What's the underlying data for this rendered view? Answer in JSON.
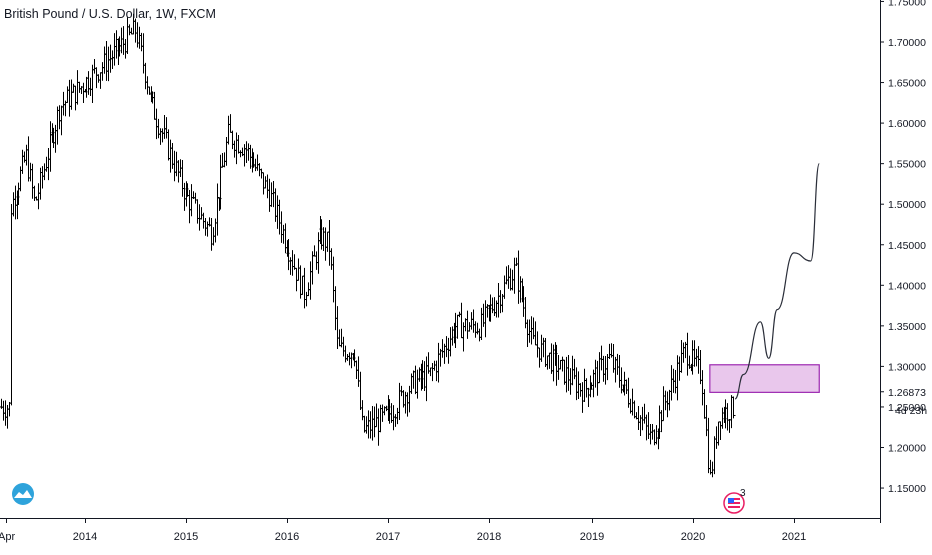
{
  "header": {
    "title": "British Pound / U.S. Dollar, 1W, FXCM"
  },
  "colors": {
    "bar": "#000000",
    "zone_fill": "#e9c7ec",
    "zone_border": "#9c27b0",
    "axis_line": "#131722",
    "logo": "#2ea3db",
    "event_icon": "#e91e63"
  },
  "price_axis": {
    "min": 1.1,
    "max": 1.75,
    "ticks": [
      "1.70000",
      "1.65000",
      "1.60000",
      "1.55000",
      "1.50000",
      "1.45000",
      "1.40000",
      "1.35000",
      "1.30000",
      "1.25000",
      "1.20000",
      "1.15000"
    ],
    "top_tick": "1.75000",
    "current_price": "1.26873",
    "countdown": "4d 23h"
  },
  "time_axis": {
    "left_stub": "Apr",
    "year_ticks": [
      "2014",
      "2015",
      "2016",
      "2017",
      "2018",
      "2019",
      "2020",
      "2021"
    ]
  },
  "events": {
    "badge_count": "3",
    "icon": "us-flag-event-icon"
  },
  "logo_icon": "tradingview-cloud-icon",
  "chart_data": {
    "type": "ohlc",
    "title": "British Pound / U.S. Dollar, 1W, FXCM",
    "timeframe": "1W",
    "xlabel": "",
    "ylabel": "",
    "ylim": [
      1.1,
      1.75
    ],
    "xlim": [
      "2013-04",
      "2021-12"
    ],
    "grid": false,
    "series": [
      {
        "key_points": [
          {
            "t": "2013-04",
            "p": 1.49
          },
          {
            "t": "2013-06",
            "p": 1.56
          },
          {
            "t": "2013-07",
            "p": 1.5
          },
          {
            "t": "2013-10",
            "p": 1.62
          },
          {
            "t": "2014-01",
            "p": 1.65
          },
          {
            "t": "2014-03",
            "p": 1.67
          },
          {
            "t": "2014-07",
            "p": 1.715
          },
          {
            "t": "2014-09",
            "p": 1.62
          },
          {
            "t": "2015-01",
            "p": 1.51
          },
          {
            "t": "2015-04",
            "p": 1.465
          },
          {
            "t": "2015-06",
            "p": 1.585
          },
          {
            "t": "2015-08",
            "p": 1.57
          },
          {
            "t": "2015-11",
            "p": 1.51
          },
          {
            "t": "2016-03",
            "p": 1.39
          },
          {
            "t": "2016-05",
            "p": 1.46
          },
          {
            "t": "2016-06",
            "p": 1.45
          },
          {
            "t": "2016-07",
            "p": 1.32
          },
          {
            "t": "2016-09",
            "p": 1.32
          },
          {
            "t": "2016-10",
            "p": 1.22
          },
          {
            "t": "2017-01",
            "p": 1.24
          },
          {
            "t": "2017-04",
            "p": 1.28
          },
          {
            "t": "2017-06",
            "p": 1.29
          },
          {
            "t": "2017-09",
            "p": 1.35
          },
          {
            "t": "2017-12",
            "p": 1.35
          },
          {
            "t": "2018-04",
            "p": 1.42
          },
          {
            "t": "2018-06",
            "p": 1.33
          },
          {
            "t": "2018-09",
            "p": 1.3
          },
          {
            "t": "2018-12",
            "p": 1.27
          },
          {
            "t": "2019-03",
            "p": 1.31
          },
          {
            "t": "2019-08",
            "p": 1.21
          },
          {
            "t": "2019-12",
            "p": 1.32
          },
          {
            "t": "2020-02",
            "p": 1.29
          },
          {
            "t": "2020-03",
            "p": 1.16
          },
          {
            "t": "2020-04",
            "p": 1.24
          },
          {
            "t": "2020-06",
            "p": 1.25
          }
        ]
      }
    ],
    "annotations": [
      {
        "type": "rectangle-zone",
        "x_start": "2020-03",
        "x_end": "2021-04",
        "y_range": [
          1.268,
          1.302
        ]
      },
      {
        "type": "projection-path",
        "points": [
          {
            "t": "2020-06",
            "p": 1.26
          },
          {
            "t": "2020-07",
            "p": 1.29
          },
          {
            "t": "2020-09",
            "p": 1.355
          },
          {
            "t": "2020-10",
            "p": 1.31
          },
          {
            "t": "2020-11",
            "p": 1.37
          },
          {
            "t": "2021-01",
            "p": 1.44
          },
          {
            "t": "2021-03",
            "p": 1.43
          },
          {
            "t": "2021-04",
            "p": 1.55
          }
        ]
      }
    ]
  }
}
